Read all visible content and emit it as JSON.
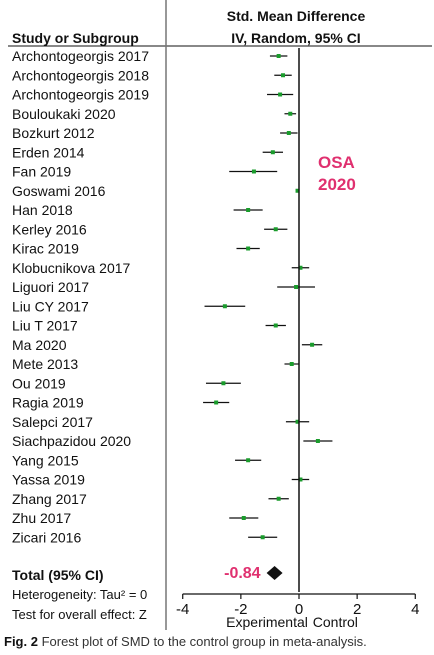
{
  "chart_data": {
    "type": "forest",
    "study_header": "Study or Subgroup",
    "effect_header_line1": "Std. Mean Difference",
    "effect_header_line2": "IV, Random, 95% CI",
    "studies": [
      {
        "name": "Archontogeorgis 2017",
        "smd": -0.7,
        "ci": [
          -1.0,
          -0.4
        ]
      },
      {
        "name": "Archontogeorgis 2018",
        "smd": -0.55,
        "ci": [
          -0.85,
          -0.25
        ]
      },
      {
        "name": "Archontogeorgis 2019",
        "smd": -0.65,
        "ci": [
          -1.1,
          -0.2
        ]
      },
      {
        "name": "Bouloukaki 2020",
        "smd": -0.3,
        "ci": [
          -0.5,
          -0.1
        ]
      },
      {
        "name": "Bozkurt 2012",
        "smd": -0.35,
        "ci": [
          -0.65,
          -0.05
        ]
      },
      {
        "name": "Erden 2014",
        "smd": -0.9,
        "ci": [
          -1.25,
          -0.55
        ]
      },
      {
        "name": "Fan 2019",
        "smd": -1.55,
        "ci": [
          -2.4,
          -0.75
        ]
      },
      {
        "name": "Goswami 2016",
        "smd": -0.05,
        "ci": [
          -0.1,
          0.0
        ]
      },
      {
        "name": "Han 2018",
        "smd": -1.75,
        "ci": [
          -2.25,
          -1.25
        ]
      },
      {
        "name": "Kerley 2016",
        "smd": -0.8,
        "ci": [
          -1.2,
          -0.4
        ]
      },
      {
        "name": "Kirac 2019",
        "smd": -1.75,
        "ci": [
          -2.15,
          -1.35
        ]
      },
      {
        "name": "Klobucnikova 2017",
        "smd": 0.05,
        "ci": [
          -0.25,
          0.35
        ]
      },
      {
        "name": "Liguori 2017",
        "smd": -0.1,
        "ci": [
          -0.75,
          0.55
        ]
      },
      {
        "name": "Liu CY 2017",
        "smd": -2.55,
        "ci": [
          -3.25,
          -1.85
        ]
      },
      {
        "name": "Liu T 2017",
        "smd": -0.8,
        "ci": [
          -1.15,
          -0.45
        ]
      },
      {
        "name": "Ma 2020",
        "smd": 0.45,
        "ci": [
          0.1,
          0.8
        ]
      },
      {
        "name": "Mete 2013",
        "smd": -0.25,
        "ci": [
          -0.5,
          0.0
        ]
      },
      {
        "name": "Ou 2019",
        "smd": -2.6,
        "ci": [
          -3.2,
          -2.0
        ]
      },
      {
        "name": "Ragia 2019",
        "smd": -2.85,
        "ci": [
          -3.3,
          -2.4
        ]
      },
      {
        "name": "Salepci 2017",
        "smd": -0.05,
        "ci": [
          -0.45,
          0.35
        ]
      },
      {
        "name": "Siachpazidou 2020",
        "smd": 0.65,
        "ci": [
          0.15,
          1.15
        ]
      },
      {
        "name": "Yang 2015",
        "smd": -1.75,
        "ci": [
          -2.2,
          -1.3
        ]
      },
      {
        "name": "Yassa 2019",
        "smd": 0.05,
        "ci": [
          -0.25,
          0.35
        ]
      },
      {
        "name": "Zhang 2017",
        "smd": -0.7,
        "ci": [
          -1.05,
          -0.35
        ]
      },
      {
        "name": "Zhu 2017",
        "smd": -1.9,
        "ci": [
          -2.4,
          -1.4
        ]
      },
      {
        "name": "Zicari 2016",
        "smd": -1.25,
        "ci": [
          -1.75,
          -0.75
        ]
      }
    ],
    "total": {
      "label": "Total (95% CI)",
      "estimate": -0.84
    },
    "heterogeneity_text": "Heterogeneity: Tau² = 0",
    "overall_effect_text": "Test for overall effect: Z",
    "annotation_line1": "OSA",
    "annotation_line2": "2020",
    "total_value_label": "-0.84",
    "xaxis": {
      "ticks": [
        -4,
        -2,
        0,
        2,
        4
      ],
      "tick_labels": [
        "-4",
        "-2",
        "0",
        "2",
        "4"
      ],
      "xlim": [
        -4.3,
        4.3
      ],
      "label_left": "Experimental",
      "label_right": "Control"
    },
    "colors": {
      "marker": "#1a9c2c",
      "annotation": "#e0306f",
      "line": "#111111"
    }
  },
  "caption": {
    "bold": "Fig. 2",
    "text": " Forest plot of SMD to the control group in meta-analysis."
  }
}
